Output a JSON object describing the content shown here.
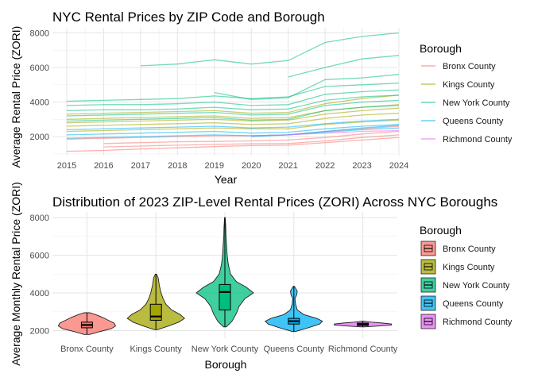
{
  "chart_data": [
    {
      "type": "line",
      "title": "NYC Rental Prices by ZIP Code and Borough",
      "xlabel": "Year",
      "ylabel": "Average Rental Price (ZORI)",
      "x": [
        2015,
        2016,
        2017,
        2018,
        2019,
        2020,
        2021,
        2022,
        2023,
        2024
      ],
      "xlim": [
        2015,
        2024
      ],
      "ylim": [
        900,
        8300
      ],
      "yticks": [
        2000,
        4000,
        6000,
        8000
      ],
      "grid": true,
      "legend_title": "Borough",
      "legend_position": "right",
      "series_groups": [
        {
          "name": "Bronx County",
          "color": "#F8766D",
          "series": [
            {
              "x": [
                2015,
                2016,
                2017,
                2018,
                2019,
                2020,
                2021,
                2022,
                2023,
                2024
              ],
              "values": [
                1150,
                1200,
                1280,
                1350,
                1420,
                1480,
                1500,
                1650,
                1800,
                1950
              ]
            },
            {
              "x": [
                2016,
                2017,
                2018,
                2019,
                2020,
                2021,
                2022,
                2023,
                2024
              ],
              "values": [
                1400,
                1450,
                1500,
                1550,
                1580,
                1600,
                1750,
                1950,
                2100
              ]
            },
            {
              "x": [
                2016,
                2017,
                2018,
                2019,
                2020,
                2021,
                2022,
                2023,
                2024
              ],
              "values": [
                1600,
                1650,
                1700,
                1720,
                1750,
                1800,
                1950,
                2150,
                2300
              ]
            },
            {
              "x": [
                2015,
                2016,
                2017,
                2018,
                2019,
                2020,
                2021,
                2022,
                2023,
                2024
              ],
              "values": [
                1850,
                1900,
                1950,
                2000,
                2050,
                2050,
                2100,
                2300,
                2450,
                2600
              ]
            }
          ]
        },
        {
          "name": "Kings County",
          "color": "#A3A500",
          "series": [
            {
              "x": [
                2015,
                2016,
                2017,
                2018,
                2019,
                2020,
                2021,
                2022,
                2023,
                2024
              ],
              "values": [
                2300,
                2350,
                2400,
                2450,
                2500,
                2450,
                2450,
                2700,
                2850,
                2950
              ]
            },
            {
              "x": [
                2015,
                2016,
                2017,
                2018,
                2019,
                2020,
                2021,
                2022,
                2023,
                2024
              ],
              "values": [
                2600,
                2650,
                2700,
                2750,
                2800,
                2700,
                2750,
                3050,
                3250,
                3350
              ]
            },
            {
              "x": [
                2015,
                2016,
                2017,
                2018,
                2019,
                2020,
                2021,
                2022,
                2023,
                2024
              ],
              "values": [
                2800,
                2850,
                2900,
                2950,
                3000,
                2900,
                2950,
                3300,
                3500,
                3650
              ]
            },
            {
              "x": [
                2015,
                2016,
                2017,
                2018,
                2019,
                2020,
                2021,
                2022,
                2023,
                2024
              ],
              "values": [
                3000,
                3050,
                3100,
                3150,
                3200,
                3050,
                3100,
                3500,
                3700,
                3850
              ]
            },
            {
              "x": [
                2015,
                2016,
                2017,
                2018,
                2019,
                2020,
                2021,
                2022,
                2023,
                2024
              ],
              "values": [
                3300,
                3350,
                3400,
                3450,
                3500,
                3350,
                3400,
                3900,
                4200,
                4400
              ]
            }
          ]
        },
        {
          "name": "New York County",
          "color": "#00BF7D",
          "series": [
            {
              "x": [
                2017,
                2018,
                2019,
                2020,
                2021,
                2022,
                2023,
                2024
              ],
              "values": [
                6100,
                6200,
                6450,
                6200,
                6400,
                7450,
                7800,
                8000
              ]
            },
            {
              "x": [
                2021,
                2022,
                2023,
                2024
              ],
              "values": [
                5450,
                6000,
                6500,
                6700
              ]
            },
            {
              "x": [
                2019,
                2020,
                2021,
                2022,
                2023,
                2024
              ],
              "values": [
                4550,
                4150,
                4250,
                5300,
                5400,
                5600
              ]
            },
            {
              "x": [
                2015,
                2016,
                2017,
                2018,
                2019,
                2020,
                2021,
                2022,
                2023,
                2024
              ],
              "values": [
                4050,
                4100,
                4150,
                4200,
                4350,
                4200,
                4300,
                4900,
                5000,
                5100
              ]
            },
            {
              "x": [
                2015,
                2016,
                2017,
                2018,
                2019,
                2020,
                2021,
                2022,
                2023,
                2024
              ],
              "values": [
                3800,
                3850,
                3850,
                3900,
                4000,
                3800,
                3850,
                4450,
                4600,
                4700
              ]
            },
            {
              "x": [
                2015,
                2016,
                2017,
                2018,
                2019,
                2020,
                2021,
                2022,
                2023,
                2024
              ],
              "values": [
                3500,
                3550,
                3550,
                3600,
                3700,
                3550,
                3600,
                4100,
                4300,
                4400
              ]
            },
            {
              "x": [
                2015,
                2016,
                2017,
                2018,
                2019,
                2020,
                2021,
                2022,
                2023,
                2024
              ],
              "values": [
                3200,
                3250,
                3300,
                3350,
                3400,
                3250,
                3300,
                3800,
                4000,
                4100
              ]
            },
            {
              "x": [
                2015,
                2016,
                2017,
                2018,
                2019,
                2020,
                2021,
                2022,
                2023,
                2024
              ],
              "values": [
                2900,
                2950,
                3000,
                3050,
                3100,
                2950,
                3000,
                3500,
                3700,
                3800
              ]
            }
          ]
        },
        {
          "name": "Queens County",
          "color": "#00B0F6",
          "series": [
            {
              "x": [
                2015,
                2016,
                2017,
                2018,
                2019,
                2020,
                2021,
                2022,
                2023,
                2024
              ],
              "values": [
                1900,
                1950,
                2000,
                2050,
                2100,
                2050,
                2100,
                2250,
                2400,
                2500
              ]
            },
            {
              "x": [
                2015,
                2016,
                2017,
                2018,
                2019,
                2020,
                2021,
                2022,
                2023,
                2024
              ],
              "values": [
                2100,
                2150,
                2200,
                2250,
                2300,
                2200,
                2250,
                2450,
                2600,
                2700
              ]
            },
            {
              "x": [
                2020,
                2021,
                2022,
                2023,
                2024
              ],
              "values": [
                2000,
                2100,
                2300,
                2500,
                2650
              ]
            },
            {
              "x": [
                2015,
                2016,
                2017,
                2018,
                2019,
                2020,
                2021,
                2022,
                2023,
                2024
              ],
              "values": [
                2400,
                2450,
                2500,
                2550,
                2600,
                2500,
                2550,
                2750,
                2900,
                3000
              ]
            }
          ]
        },
        {
          "name": "Richmond County",
          "color": "#E76BF3",
          "series": [
            {
              "x": [
                2020,
                2021,
                2022,
                2023,
                2024
              ],
              "values": [
                2050,
                2100,
                2200,
                2300,
                2350
              ]
            }
          ]
        }
      ]
    },
    {
      "type": "violin",
      "title": "Distribution of 2023 ZIP-Level Rental Prices (ZORI) Across NYC Boroughs",
      "xlabel": "Borough",
      "ylabel": "Average Monthly Rental Price (ZORI)",
      "categories": [
        "Bronx County",
        "Kings County",
        "New York County",
        "Queens County",
        "Richmond County"
      ],
      "ylim": [
        1600,
        8300
      ],
      "yticks": [
        2000,
        4000,
        6000,
        8000
      ],
      "grid": true,
      "legend_title": "Borough",
      "legend_position": "right",
      "groups": [
        {
          "name": "Bronx County",
          "color": "#F8766D",
          "min": 1800,
          "q1": 2150,
          "median": 2300,
          "q3": 2450,
          "max": 2950,
          "density": [
            [
              1800,
              0.1
            ],
            [
              1950,
              0.45
            ],
            [
              2100,
              0.85
            ],
            [
              2250,
              1.0
            ],
            [
              2400,
              0.95
            ],
            [
              2550,
              0.75
            ],
            [
              2700,
              0.55
            ],
            [
              2850,
              0.3
            ],
            [
              2950,
              0.1
            ]
          ]
        },
        {
          "name": "Kings County",
          "color": "#A3A500",
          "min": 2050,
          "q1": 2550,
          "median": 2750,
          "q3": 3400,
          "max": 5000,
          "density": [
            [
              2050,
              0.05
            ],
            [
              2250,
              0.45
            ],
            [
              2450,
              0.8
            ],
            [
              2650,
              1.0
            ],
            [
              2850,
              0.85
            ],
            [
              3100,
              0.55
            ],
            [
              3400,
              0.35
            ],
            [
              3700,
              0.25
            ],
            [
              4000,
              0.18
            ],
            [
              4400,
              0.12
            ],
            [
              4800,
              0.08
            ],
            [
              5000,
              0.02
            ]
          ]
        },
        {
          "name": "New York County",
          "color": "#00BF7D",
          "min": 2200,
          "q1": 3100,
          "median": 4050,
          "q3": 4450,
          "max": 8000,
          "density": [
            [
              2200,
              0.05
            ],
            [
              2500,
              0.25
            ],
            [
              2900,
              0.4
            ],
            [
              3300,
              0.5
            ],
            [
              3700,
              0.7
            ],
            [
              4000,
              1.0
            ],
            [
              4300,
              0.75
            ],
            [
              4600,
              0.4
            ],
            [
              5000,
              0.2
            ],
            [
              5500,
              0.12
            ],
            [
              6000,
              0.08
            ],
            [
              6500,
              0.06
            ],
            [
              7000,
              0.04
            ],
            [
              7500,
              0.03
            ],
            [
              8000,
              0.01
            ]
          ]
        },
        {
          "name": "Queens County",
          "color": "#00B0F6",
          "min": 1950,
          "q1": 2350,
          "median": 2500,
          "q3": 2650,
          "max": 4350,
          "density": [
            [
              1950,
              0.05
            ],
            [
              2150,
              0.5
            ],
            [
              2350,
              0.9
            ],
            [
              2500,
              1.0
            ],
            [
              2650,
              0.8
            ],
            [
              2850,
              0.35
            ],
            [
              3100,
              0.12
            ],
            [
              3400,
              0.06
            ],
            [
              3700,
              0.04
            ],
            [
              3900,
              0.1
            ],
            [
              4100,
              0.12
            ],
            [
              4350,
              0.02
            ]
          ]
        },
        {
          "name": "Richmond County",
          "color": "#E76BF3",
          "min": 2200,
          "q1": 2270,
          "median": 2330,
          "q3": 2400,
          "max": 2500,
          "density": [
            [
              2200,
              0.05
            ],
            [
              2250,
              0.6
            ],
            [
              2300,
              1.0
            ],
            [
              2350,
              1.0
            ],
            [
              2400,
              0.7
            ],
            [
              2450,
              0.3
            ],
            [
              2500,
              0.03
            ]
          ]
        }
      ]
    }
  ]
}
